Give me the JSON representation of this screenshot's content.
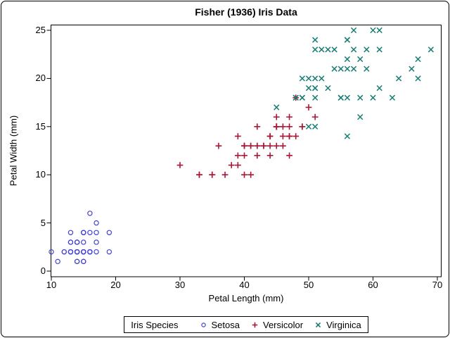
{
  "chart_data": {
    "type": "scatter",
    "title": "Fisher (1936) Iris Data",
    "xlabel": "Petal Length (mm)",
    "ylabel": "Petal Width (mm)",
    "xlim": [
      10,
      70
    ],
    "ylim": [
      0,
      25
    ],
    "xticks": [
      10,
      20,
      30,
      40,
      50,
      60,
      70
    ],
    "yticks": [
      0,
      5,
      10,
      15,
      20,
      25
    ],
    "grid": false,
    "legend_position": "bottom",
    "legend_title": "Iris Species",
    "frame_color": "#000000",
    "background_color": "#ffffff",
    "series": [
      {
        "name": "Setosa",
        "marker": "circle",
        "color": "#4242d3",
        "points": [
          [
            14,
            2
          ],
          [
            14,
            2
          ],
          [
            13,
            2
          ],
          [
            15,
            2
          ],
          [
            14,
            2
          ],
          [
            17,
            4
          ],
          [
            14,
            3
          ],
          [
            15,
            2
          ],
          [
            14,
            2
          ],
          [
            15,
            1
          ],
          [
            15,
            2
          ],
          [
            16,
            2
          ],
          [
            14,
            1
          ],
          [
            11,
            1
          ],
          [
            12,
            2
          ],
          [
            15,
            4
          ],
          [
            13,
            4
          ],
          [
            14,
            3
          ],
          [
            17,
            3
          ],
          [
            15,
            3
          ],
          [
            17,
            2
          ],
          [
            15,
            4
          ],
          [
            10,
            2
          ],
          [
            17,
            5
          ],
          [
            19,
            2
          ],
          [
            16,
            2
          ],
          [
            16,
            4
          ],
          [
            15,
            2
          ],
          [
            14,
            2
          ],
          [
            16,
            2
          ],
          [
            16,
            2
          ],
          [
            15,
            4
          ],
          [
            15,
            1
          ],
          [
            14,
            2
          ],
          [
            15,
            2
          ],
          [
            12,
            2
          ],
          [
            13,
            2
          ],
          [
            14,
            1
          ],
          [
            13,
            2
          ],
          [
            15,
            2
          ],
          [
            13,
            3
          ],
          [
            13,
            3
          ],
          [
            13,
            2
          ],
          [
            16,
            6
          ],
          [
            19,
            4
          ],
          [
            14,
            3
          ],
          [
            16,
            2
          ],
          [
            14,
            2
          ],
          [
            15,
            2
          ],
          [
            14,
            2
          ]
        ]
      },
      {
        "name": "Versicolor",
        "marker": "plus",
        "color": "#aa1636",
        "points": [
          [
            47,
            14
          ],
          [
            45,
            15
          ],
          [
            49,
            15
          ],
          [
            40,
            13
          ],
          [
            46,
            15
          ],
          [
            45,
            13
          ],
          [
            47,
            16
          ],
          [
            33,
            10
          ],
          [
            46,
            13
          ],
          [
            39,
            14
          ],
          [
            35,
            10
          ],
          [
            42,
            15
          ],
          [
            40,
            10
          ],
          [
            47,
            14
          ],
          [
            36,
            13
          ],
          [
            44,
            14
          ],
          [
            45,
            15
          ],
          [
            41,
            10
          ],
          [
            45,
            15
          ],
          [
            39,
            11
          ],
          [
            48,
            18
          ],
          [
            40,
            13
          ],
          [
            49,
            15
          ],
          [
            47,
            12
          ],
          [
            43,
            13
          ],
          [
            44,
            14
          ],
          [
            48,
            14
          ],
          [
            50,
            17
          ],
          [
            45,
            15
          ],
          [
            35,
            10
          ],
          [
            38,
            11
          ],
          [
            37,
            10
          ],
          [
            39,
            12
          ],
          [
            51,
            16
          ],
          [
            45,
            15
          ],
          [
            45,
            16
          ],
          [
            47,
            15
          ],
          [
            44,
            13
          ],
          [
            41,
            13
          ],
          [
            40,
            13
          ],
          [
            44,
            12
          ],
          [
            46,
            14
          ],
          [
            40,
            12
          ],
          [
            33,
            10
          ],
          [
            42,
            13
          ],
          [
            42,
            12
          ],
          [
            42,
            13
          ],
          [
            43,
            13
          ],
          [
            30,
            11
          ],
          [
            41,
            13
          ]
        ]
      },
      {
        "name": "Virginica",
        "marker": "x",
        "color": "#177d74",
        "points": [
          [
            60,
            25
          ],
          [
            51,
            19
          ],
          [
            59,
            21
          ],
          [
            56,
            18
          ],
          [
            58,
            22
          ],
          [
            66,
            21
          ],
          [
            45,
            17
          ],
          [
            63,
            18
          ],
          [
            58,
            18
          ],
          [
            61,
            25
          ],
          [
            51,
            20
          ],
          [
            53,
            19
          ],
          [
            55,
            21
          ],
          [
            50,
            20
          ],
          [
            51,
            24
          ],
          [
            53,
            23
          ],
          [
            55,
            18
          ],
          [
            67,
            22
          ],
          [
            69,
            23
          ],
          [
            50,
            15
          ],
          [
            57,
            23
          ],
          [
            49,
            20
          ],
          [
            67,
            20
          ],
          [
            49,
            18
          ],
          [
            57,
            21
          ],
          [
            60,
            18
          ],
          [
            48,
            18
          ],
          [
            49,
            18
          ],
          [
            56,
            21
          ],
          [
            58,
            16
          ],
          [
            61,
            19
          ],
          [
            64,
            20
          ],
          [
            56,
            22
          ],
          [
            51,
            15
          ],
          [
            56,
            14
          ],
          [
            61,
            23
          ],
          [
            56,
            24
          ],
          [
            55,
            18
          ],
          [
            48,
            18
          ],
          [
            54,
            21
          ],
          [
            56,
            24
          ],
          [
            51,
            23
          ],
          [
            51,
            19
          ],
          [
            59,
            23
          ],
          [
            57,
            25
          ],
          [
            52,
            23
          ],
          [
            50,
            19
          ],
          [
            52,
            20
          ],
          [
            54,
            23
          ],
          [
            51,
            18
          ]
        ]
      }
    ]
  }
}
